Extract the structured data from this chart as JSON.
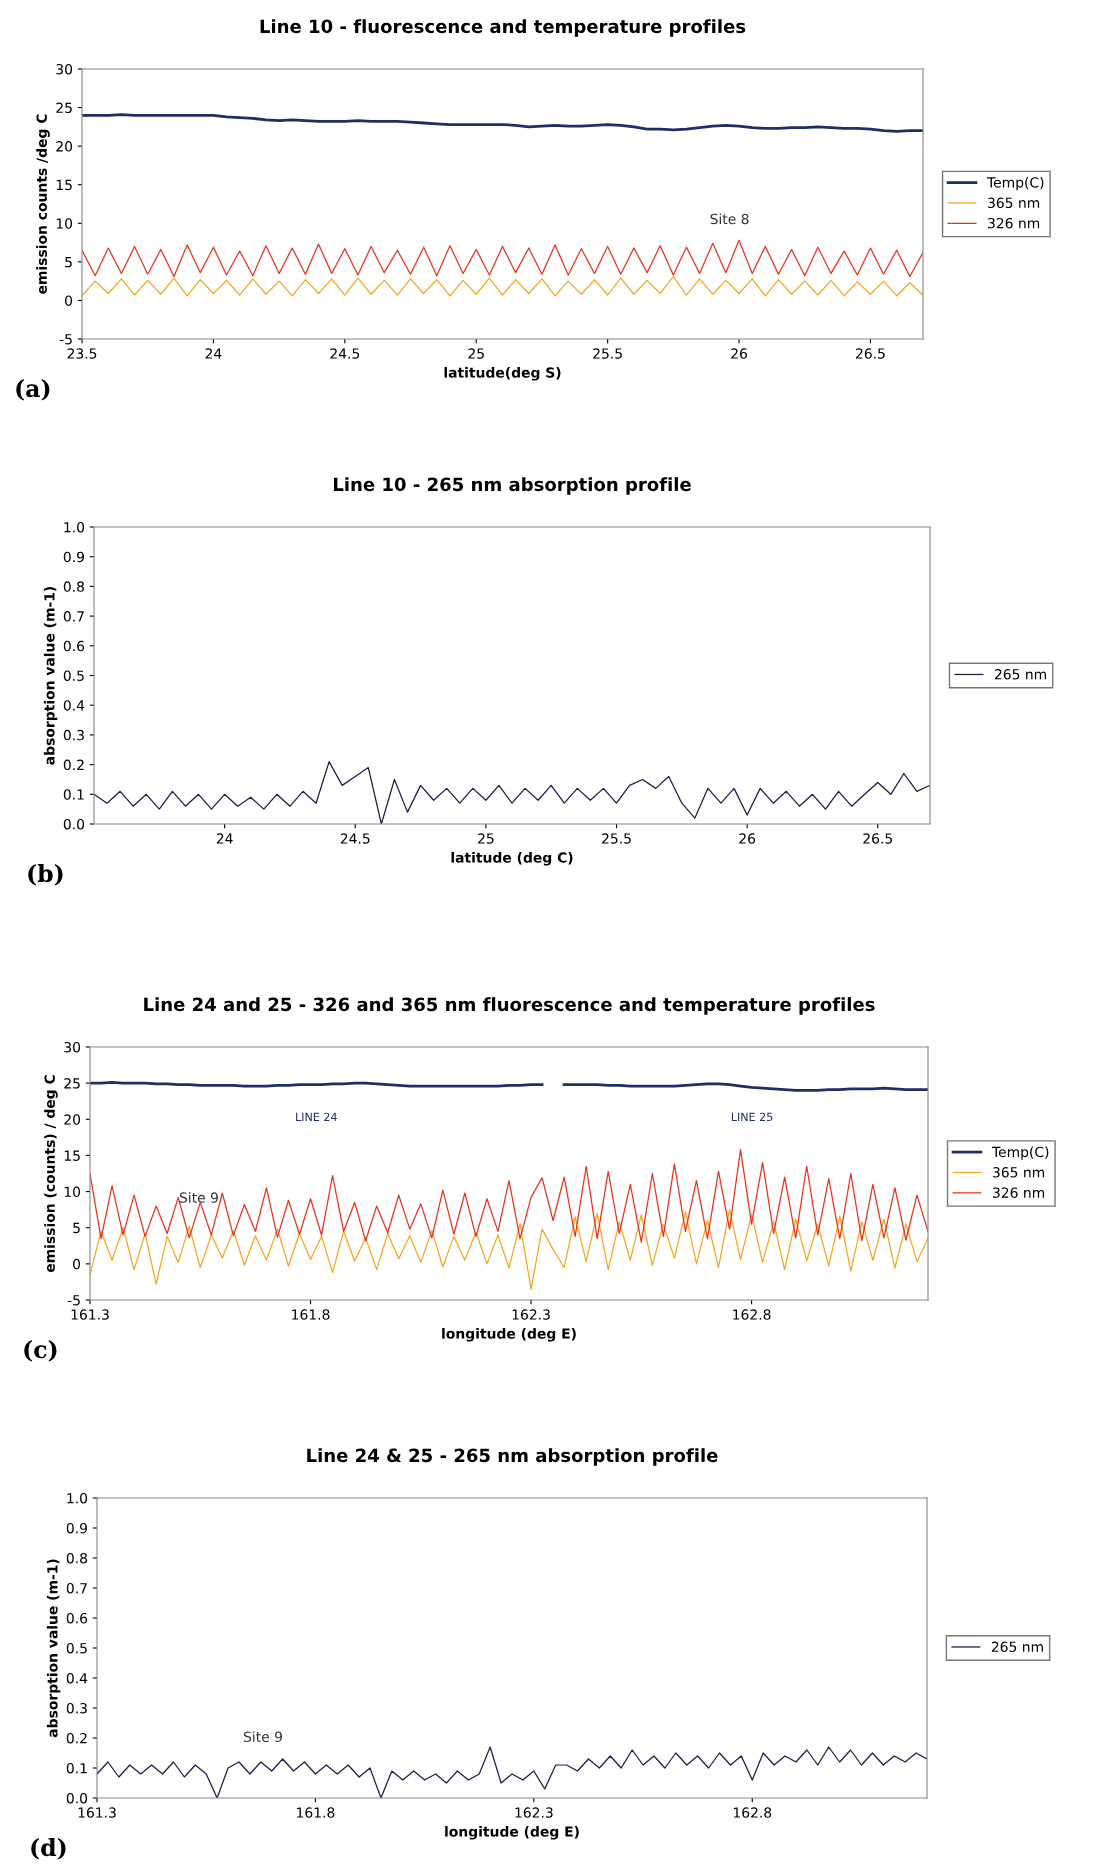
{
  "chart_data": [
    {
      "type": "line",
      "title": "Line 10 - fluorescence and temperature profiles",
      "xlabel": "latitude(deg S)",
      "ylabel": "emission counts /deg C",
      "legend": "right",
      "grid": false,
      "xlim": [
        23.5,
        26.7
      ],
      "xticks": [
        23.5,
        24,
        24.5,
        25,
        25.5,
        26,
        26.5
      ],
      "ylim": [
        -5,
        30
      ],
      "yticks": [
        -5,
        0,
        5,
        10,
        15,
        20,
        25,
        30
      ],
      "x": [
        23.5,
        23.55,
        23.6,
        23.65,
        23.7,
        23.75,
        23.8,
        23.85,
        23.9,
        23.95,
        24.0,
        24.05,
        24.1,
        24.15,
        24.2,
        24.25,
        24.3,
        24.35,
        24.4,
        24.45,
        24.5,
        24.55,
        24.6,
        24.65,
        24.7,
        24.75,
        24.8,
        24.85,
        24.9,
        24.95,
        25.0,
        25.05,
        25.1,
        25.15,
        25.2,
        25.25,
        25.3,
        25.35,
        25.4,
        25.45,
        25.5,
        25.55,
        25.6,
        25.65,
        25.7,
        25.75,
        25.8,
        25.85,
        25.9,
        25.95,
        26.0,
        26.05,
        26.1,
        26.15,
        26.2,
        26.25,
        26.3,
        26.35,
        26.4,
        26.45,
        26.5,
        26.55,
        26.6,
        26.65,
        26.7
      ],
      "series": [
        {
          "name": "326 nm",
          "color": "#e8321e",
          "values": [
            6.5,
            3.2,
            6.8,
            3.5,
            7.0,
            3.4,
            6.6,
            3.1,
            7.2,
            3.6,
            6.9,
            3.3,
            6.4,
            3.2,
            7.1,
            3.5,
            6.8,
            3.4,
            7.3,
            3.5,
            6.7,
            3.3,
            7.0,
            3.6,
            6.5,
            3.4,
            6.9,
            3.2,
            7.1,
            3.5,
            6.6,
            3.3,
            7.0,
            3.6,
            6.8,
            3.4,
            7.2,
            3.3,
            6.7,
            3.5,
            7.0,
            3.4,
            6.8,
            3.6,
            7.1,
            3.3,
            6.9,
            3.5,
            7.4,
            3.6,
            7.8,
            3.5,
            7.0,
            3.4,
            6.6,
            3.2,
            6.9,
            3.5,
            6.4,
            3.3,
            6.8,
            3.4,
            6.5,
            3.1,
            6.2
          ]
        },
        {
          "name": "365 nm",
          "color": "#f5a623",
          "values": [
            0.6,
            2.5,
            0.9,
            2.8,
            0.7,
            2.6,
            0.8,
            2.9,
            0.6,
            2.7,
            0.9,
            2.6,
            0.7,
            2.8,
            0.8,
            2.5,
            0.6,
            2.7,
            0.9,
            2.8,
            0.7,
            2.9,
            0.8,
            2.6,
            0.7,
            2.8,
            0.9,
            2.7,
            0.6,
            2.6,
            0.8,
            2.9,
            0.7,
            2.7,
            0.9,
            2.8,
            0.6,
            2.5,
            0.8,
            2.7,
            0.7,
            2.9,
            0.8,
            2.6,
            0.9,
            3.1,
            0.7,
            2.8,
            0.8,
            2.6,
            0.9,
            2.8,
            0.6,
            2.7,
            0.8,
            2.5,
            0.7,
            2.6,
            0.6,
            2.4,
            0.8,
            2.5,
            0.6,
            2.3,
            0.7
          ]
        },
        {
          "name": "Temp(C)",
          "color": "#1f2f66",
          "values": [
            24.0,
            24.0,
            24.0,
            24.1,
            24.0,
            24.0,
            24.0,
            24.0,
            24.0,
            24.0,
            24.0,
            23.8,
            23.7,
            23.6,
            23.4,
            23.3,
            23.4,
            23.3,
            23.2,
            23.2,
            23.2,
            23.3,
            23.2,
            23.2,
            23.2,
            23.1,
            23.0,
            22.9,
            22.8,
            22.8,
            22.8,
            22.8,
            22.8,
            22.7,
            22.5,
            22.6,
            22.7,
            22.6,
            22.6,
            22.7,
            22.8,
            22.7,
            22.5,
            22.2,
            22.2,
            22.1,
            22.2,
            22.4,
            22.6,
            22.7,
            22.6,
            22.4,
            22.3,
            22.3,
            22.4,
            22.4,
            22.5,
            22.4,
            22.3,
            22.3,
            22.2,
            22.0,
            21.9,
            22.0,
            22.0
          ]
        }
      ],
      "annotations": [
        "Site 8",
        "(a)"
      ]
    },
    {
      "type": "line",
      "title": "Line 10 - 265 nm absorption profile",
      "xlabel": "latitude (deg C)",
      "ylabel": "absorption value (m-1)",
      "legend": "right",
      "grid": false,
      "xlim": [
        23.5,
        26.7
      ],
      "xticks": [
        24,
        24.5,
        25,
        25.5,
        26,
        26.5
      ],
      "ylim": [
        0,
        1
      ],
      "yticks": [
        {
          "value": 0,
          "label": "0.0"
        },
        {
          "value": 0.1,
          "label": "0.1"
        },
        {
          "value": 0.2,
          "label": "0.2"
        },
        {
          "value": 0.3,
          "label": "0.3"
        },
        {
          "value": 0.4,
          "label": "0.4"
        },
        {
          "value": 0.5,
          "label": "0.5"
        },
        {
          "value": 0.6,
          "label": "0.6"
        },
        {
          "value": 0.7,
          "label": "0.7"
        },
        {
          "value": 0.8,
          "label": "0.8"
        },
        {
          "value": 0.9,
          "label": "0.9"
        },
        {
          "value": 1,
          "label": "1.0"
        }
      ],
      "x": [
        23.5,
        23.55,
        23.6,
        23.65,
        23.7,
        23.75,
        23.8,
        23.85,
        23.9,
        23.95,
        24.0,
        24.05,
        24.1,
        24.15,
        24.2,
        24.25,
        24.3,
        24.35,
        24.4,
        24.45,
        24.5,
        24.55,
        24.6,
        24.65,
        24.7,
        24.75,
        24.8,
        24.85,
        24.9,
        24.95,
        25.0,
        25.05,
        25.1,
        25.15,
        25.2,
        25.25,
        25.3,
        25.35,
        25.4,
        25.45,
        25.5,
        25.55,
        25.6,
        25.65,
        25.7,
        25.75,
        25.8,
        25.85,
        25.9,
        25.95,
        26.0,
        26.05,
        26.1,
        26.15,
        26.2,
        26.25,
        26.3,
        26.35,
        26.4,
        26.45,
        26.5,
        26.55,
        26.6,
        26.65,
        26.7
      ],
      "series": [
        {
          "name": "265 nm",
          "color": "#1c1c48",
          "values": [
            0.1,
            0.07,
            0.11,
            0.06,
            0.1,
            0.05,
            0.11,
            0.06,
            0.1,
            0.05,
            0.1,
            0.06,
            0.09,
            0.05,
            0.1,
            0.06,
            0.11,
            0.07,
            0.21,
            0.13,
            0.16,
            0.19,
            0.0,
            0.15,
            0.04,
            0.13,
            0.08,
            0.12,
            0.07,
            0.12,
            0.08,
            0.13,
            0.07,
            0.12,
            0.08,
            0.13,
            0.07,
            0.12,
            0.08,
            0.12,
            0.07,
            0.13,
            0.15,
            0.12,
            0.16,
            0.07,
            0.02,
            0.12,
            0.07,
            0.12,
            0.03,
            0.12,
            0.07,
            0.11,
            0.06,
            0.1,
            0.05,
            0.11,
            0.06,
            0.1,
            0.14,
            0.1,
            0.17,
            0.11,
            0.13
          ]
        }
      ],
      "annotations": [
        "(b)"
      ]
    },
    {
      "type": "line",
      "title": "Line 24 and 25 - 326 and 365 nm fluorescence and temperature profiles",
      "xlabel": "longitude (deg E)",
      "ylabel": "emission (counts) / deg C",
      "legend": "right",
      "grid": false,
      "xlim": [
        161.3,
        163.2
      ],
      "xticks": [
        161.3,
        161.8,
        162.3,
        162.8
      ],
      "ylim": [
        -5,
        30
      ],
      "yticks": [
        -5,
        0,
        5,
        10,
        15,
        20,
        25,
        30
      ],
      "x": [
        161.3,
        161.325,
        161.35,
        161.375,
        161.4,
        161.425,
        161.45,
        161.475,
        161.5,
        161.525,
        161.55,
        161.575,
        161.6,
        161.625,
        161.65,
        161.675,
        161.7,
        161.725,
        161.75,
        161.775,
        161.8,
        161.825,
        161.85,
        161.875,
        161.9,
        161.925,
        161.95,
        161.975,
        162.0,
        162.025,
        162.05,
        162.075,
        162.1,
        162.125,
        162.15,
        162.175,
        162.2,
        162.225,
        162.25,
        162.275,
        162.3,
        162.325,
        162.35,
        162.375,
        162.4,
        162.425,
        162.45,
        162.475,
        162.5,
        162.525,
        162.55,
        162.575,
        162.6,
        162.625,
        162.65,
        162.675,
        162.7,
        162.725,
        162.75,
        162.775,
        162.8,
        162.825,
        162.85,
        162.875,
        162.9,
        162.925,
        162.95,
        162.975,
        163.0,
        163.025,
        163.05,
        163.075,
        163.1,
        163.125,
        163.15,
        163.175,
        163.2
      ],
      "series": [
        {
          "name": "326 nm",
          "color": "#e8321e",
          "values": [
            12.5,
            3.5,
            10.8,
            4.0,
            9.5,
            3.8,
            8.0,
            4.2,
            9.2,
            3.6,
            8.5,
            4.0,
            9.8,
            3.9,
            8.2,
            4.5,
            10.5,
            3.7,
            8.8,
            4.1,
            9.0,
            4.0,
            12.2,
            4.5,
            8.5,
            3.2,
            8.0,
            4.3,
            9.5,
            4.8,
            8.3,
            3.6,
            10.2,
            4.1,
            9.8,
            3.8,
            9.0,
            4.5,
            11.5,
            3.5,
            9.2,
            11.9,
            6.0,
            12.0,
            3.8,
            13.5,
            3.5,
            12.8,
            4.2,
            11.0,
            3.0,
            12.5,
            3.8,
            13.8,
            4.5,
            11.5,
            3.5,
            12.8,
            4.8,
            15.8,
            5.5,
            14.0,
            4.2,
            12.0,
            3.6,
            13.5,
            4.0,
            11.8,
            3.5,
            12.5,
            3.2,
            11.0,
            3.6,
            10.5,
            3.3,
            9.5,
            4.5
          ]
        },
        {
          "name": "365 nm",
          "color": "#f5a623",
          "values": [
            -1.5,
            4.5,
            0.5,
            5.0,
            -0.8,
            4.2,
            -2.8,
            3.8,
            0.2,
            5.2,
            -0.5,
            4.0,
            0.8,
            4.6,
            -0.2,
            3.9,
            0.5,
            4.8,
            -0.3,
            4.2,
            0.6,
            3.8,
            -1.2,
            4.5,
            0.4,
            3.6,
            -0.8,
            4.2,
            0.7,
            3.9,
            0.2,
            4.6,
            -0.4,
            3.8,
            0.5,
            4.4,
            0.0,
            4.0,
            -0.6,
            5.6,
            -3.5,
            4.8,
            2.0,
            -0.5,
            6.5,
            0.3,
            7.0,
            -0.8,
            5.8,
            0.5,
            6.8,
            -0.2,
            5.5,
            0.8,
            7.2,
            0.0,
            6.0,
            -0.5,
            7.5,
            0.6,
            6.8,
            0.2,
            5.8,
            -0.8,
            6.2,
            0.4,
            5.5,
            -0.3,
            6.6,
            -1.0,
            5.8,
            0.5,
            6.2,
            -0.6,
            5.5,
            0.3,
            3.5
          ]
        },
        {
          "name": "Temp(C)",
          "color": "#1f2f66",
          "values": [
            25.0,
            25.0,
            25.1,
            25.0,
            25.0,
            25.0,
            24.9,
            24.9,
            24.8,
            24.8,
            24.7,
            24.7,
            24.7,
            24.7,
            24.6,
            24.6,
            24.6,
            24.7,
            24.7,
            24.8,
            24.8,
            24.8,
            24.9,
            24.9,
            25.0,
            25.0,
            24.9,
            24.8,
            24.7,
            24.6,
            24.6,
            24.6,
            24.6,
            24.6,
            24.6,
            24.6,
            24.6,
            24.6,
            24.7,
            24.7,
            24.8,
            24.8,
            null,
            24.8,
            24.8,
            24.8,
            24.8,
            24.7,
            24.7,
            24.6,
            24.6,
            24.6,
            24.6,
            24.6,
            24.7,
            24.8,
            24.9,
            24.9,
            24.8,
            24.6,
            24.4,
            24.3,
            24.2,
            24.1,
            24.0,
            24.0,
            24.0,
            24.1,
            24.1,
            24.2,
            24.2,
            24.2,
            24.3,
            24.2,
            24.1,
            24.1,
            24.1
          ]
        }
      ],
      "annotations": [
        "LINE 24",
        "LINE 25",
        "Site 9",
        "(c)"
      ]
    },
    {
      "type": "line",
      "title": "Line 24 & 25 - 265 nm absorption profile",
      "xlabel": "longitude (deg E)",
      "ylabel": "absorption value (m-1)",
      "legend": "right",
      "grid": false,
      "xlim": [
        161.3,
        163.2
      ],
      "xticks": [
        161.3,
        161.8,
        162.3,
        162.8
      ],
      "ylim": [
        0,
        1
      ],
      "yticks": [
        {
          "value": 0,
          "label": "0.0"
        },
        {
          "value": 0.1,
          "label": "0.1"
        },
        {
          "value": 0.2,
          "label": "0.2"
        },
        {
          "value": 0.3,
          "label": "0.3"
        },
        {
          "value": 0.4,
          "label": "0.4"
        },
        {
          "value": 0.5,
          "label": "0.5"
        },
        {
          "value": 0.6,
          "label": "0.6"
        },
        {
          "value": 0.7,
          "label": "0.7"
        },
        {
          "value": 0.8,
          "label": "0.8"
        },
        {
          "value": 0.9,
          "label": "0.9"
        },
        {
          "value": 1,
          "label": "1.0"
        }
      ],
      "x": [
        161.3,
        161.325,
        161.35,
        161.375,
        161.4,
        161.425,
        161.45,
        161.475,
        161.5,
        161.525,
        161.55,
        161.575,
        161.6,
        161.625,
        161.65,
        161.675,
        161.7,
        161.725,
        161.75,
        161.775,
        161.8,
        161.825,
        161.85,
        161.875,
        161.9,
        161.925,
        161.95,
        161.975,
        162.0,
        162.025,
        162.05,
        162.075,
        162.1,
        162.125,
        162.15,
        162.175,
        162.2,
        162.225,
        162.25,
        162.275,
        162.3,
        162.325,
        162.35,
        162.375,
        162.4,
        162.425,
        162.45,
        162.475,
        162.5,
        162.525,
        162.55,
        162.575,
        162.6,
        162.625,
        162.65,
        162.675,
        162.7,
        162.725,
        162.75,
        162.775,
        162.8,
        162.825,
        162.85,
        162.875,
        162.9,
        162.925,
        162.95,
        162.975,
        163.0,
        163.025,
        163.05,
        163.075,
        163.1,
        163.125,
        163.15,
        163.175,
        163.2
      ],
      "series": [
        {
          "name": "265 nm",
          "color": "#1c1c48",
          "values": [
            0.08,
            0.12,
            0.07,
            0.11,
            0.08,
            0.11,
            0.08,
            0.12,
            0.07,
            0.11,
            0.08,
            0.0,
            0.1,
            0.12,
            0.08,
            0.12,
            0.09,
            0.13,
            0.09,
            0.12,
            0.08,
            0.11,
            0.08,
            0.11,
            0.07,
            0.1,
            0.0,
            0.09,
            0.06,
            0.09,
            0.06,
            0.08,
            0.05,
            0.09,
            0.06,
            0.08,
            0.17,
            0.05,
            0.08,
            0.06,
            0.09,
            0.03,
            0.11,
            0.11,
            0.09,
            0.13,
            0.1,
            0.14,
            0.1,
            0.16,
            0.11,
            0.14,
            0.1,
            0.15,
            0.11,
            0.14,
            0.1,
            0.15,
            0.11,
            0.14,
            0.06,
            0.15,
            0.11,
            0.14,
            0.12,
            0.16,
            0.11,
            0.17,
            0.12,
            0.16,
            0.11,
            0.15,
            0.11,
            0.14,
            0.12,
            0.15,
            0.13
          ]
        }
      ],
      "annotations": [
        "Site 9",
        "(d)"
      ]
    }
  ]
}
